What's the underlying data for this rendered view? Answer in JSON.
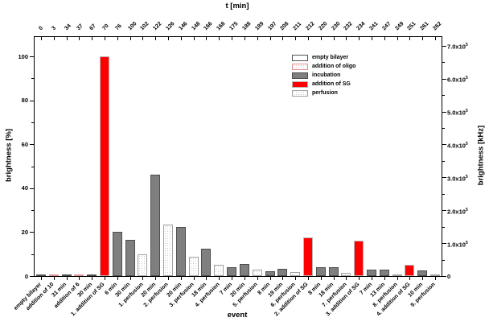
{
  "figure_type": "scientific bar chart",
  "colors": {
    "empty_border": "#555555",
    "oligo_dot": "#f2b4b4",
    "oligo_border": "#dd9595",
    "incubation_fill": "#7f7f7f",
    "incubation_border": "#4d4d4d",
    "sg_fill": "#ff0000",
    "sg_border": "#b5b5b5",
    "perfusion_dot": "#c6c6c6",
    "perfusion_border": "#a0a0a0"
  },
  "legend": {
    "items": [
      {
        "label": "empty bilayer",
        "category": "empty"
      },
      {
        "label": "addition of oligo",
        "category": "oligo"
      },
      {
        "label": "incubation",
        "category": "incubation"
      },
      {
        "label": "addition of SG",
        "category": "sg"
      },
      {
        "label": "perfusion",
        "category": "perfusion"
      }
    ]
  },
  "chart_data": {
    "type": "bar",
    "title": "",
    "top_axis_title": "t [min]",
    "xlabel": "event",
    "ylabel_left": "brightness [%]",
    "ylabel_right": "brightness [kHz]",
    "ylim_left": [
      0,
      109
    ],
    "left_ticks": [
      0,
      20,
      40,
      60,
      80,
      100
    ],
    "left_minor_ticks": [
      10,
      30,
      50,
      70,
      90
    ],
    "right_ticks": [
      {
        "label": "0",
        "value": 0
      },
      {
        "label": "1.0x10^5",
        "value": 100000
      },
      {
        "label": "2.0x10^5",
        "value": 200000
      },
      {
        "label": "3.0x10^5",
        "value": 300000
      },
      {
        "label": "4.0x10^5",
        "value": 400000
      },
      {
        "label": "5.0x10^5",
        "value": 500000
      },
      {
        "label": "6.0x10^5",
        "value": 600000
      },
      {
        "label": "7.0x10^5",
        "value": 700000
      }
    ],
    "legend_position": "upper right inside plot",
    "grid": false,
    "events": [
      {
        "label": "empty bilayer",
        "t": "0",
        "category": "empty",
        "value": 0.3
      },
      {
        "label": "addition of 10",
        "t": "3",
        "category": "oligo",
        "value": 0.4
      },
      {
        "label": "31 min",
        "t": "34",
        "category": "incubation",
        "value": 0.4
      },
      {
        "label": "addition of 6",
        "t": "37",
        "category": "oligo",
        "value": 0.4
      },
      {
        "label": "30 min",
        "t": "67",
        "category": "incubation",
        "value": 0.6
      },
      {
        "label": "1. addition of SG",
        "t": "70",
        "category": "sg",
        "value": 100
      },
      {
        "label": "6 min",
        "t": "76",
        "category": "incubation",
        "value": 20
      },
      {
        "label": "30 min",
        "t": "100",
        "category": "incubation",
        "value": 16.5
      },
      {
        "label": "1. perfusion",
        "t": "102",
        "category": "perfusion",
        "value": 10
      },
      {
        "label": "20 min",
        "t": "122",
        "category": "incubation",
        "value": 46
      },
      {
        "label": "2. perfusion",
        "t": "126",
        "category": "perfusion",
        "value": 23.4
      },
      {
        "label": "20 min",
        "t": "146",
        "category": "incubation",
        "value": 22.5
      },
      {
        "label": "3. perfusion",
        "t": "148",
        "category": "perfusion",
        "value": 8.7
      },
      {
        "label": "18 min",
        "t": "166",
        "category": "incubation",
        "value": 12.4
      },
      {
        "label": "4. perfusion",
        "t": "168",
        "category": "perfusion",
        "value": 5.0
      },
      {
        "label": "7 min",
        "t": "175",
        "category": "incubation",
        "value": 4.2
      },
      {
        "label": "20 min",
        "t": "188",
        "category": "incubation",
        "value": 5.6
      },
      {
        "label": "5. perfusion",
        "t": "189",
        "category": "perfusion",
        "value": 3.0
      },
      {
        "label": "8 min",
        "t": "197",
        "category": "incubation",
        "value": 2.3
      },
      {
        "label": "19 min",
        "t": "208",
        "category": "incubation",
        "value": 3.2
      },
      {
        "label": "6. perfusion",
        "t": "211",
        "category": "perfusion",
        "value": 1.9
      },
      {
        "label": "2. addition of SG",
        "t": "212",
        "category": "sg",
        "value": 17.5
      },
      {
        "label": "8 min",
        "t": "220",
        "category": "incubation",
        "value": 4.1
      },
      {
        "label": "18 min",
        "t": "230",
        "category": "incubation",
        "value": 3.9
      },
      {
        "label": "7. perfusion",
        "t": "232",
        "category": "perfusion",
        "value": 1.4
      },
      {
        "label": "3. addition of SG",
        "t": "234",
        "category": "sg",
        "value": 16.2
      },
      {
        "label": "7 min",
        "t": "241",
        "category": "incubation",
        "value": 2.8
      },
      {
        "label": "13 min",
        "t": "247",
        "category": "incubation",
        "value": 3.1
      },
      {
        "label": "8. perfusion",
        "t": "249",
        "category": "perfusion",
        "value": 0.7
      },
      {
        "label": "4. addition of SG",
        "t": "251",
        "category": "sg",
        "value": 5.0
      },
      {
        "label": "10 min",
        "t": "261",
        "category": "incubation",
        "value": 2.4
      },
      {
        "label": "9. perfusion",
        "t": "262",
        "category": "perfusion",
        "value": 0.4
      }
    ]
  }
}
